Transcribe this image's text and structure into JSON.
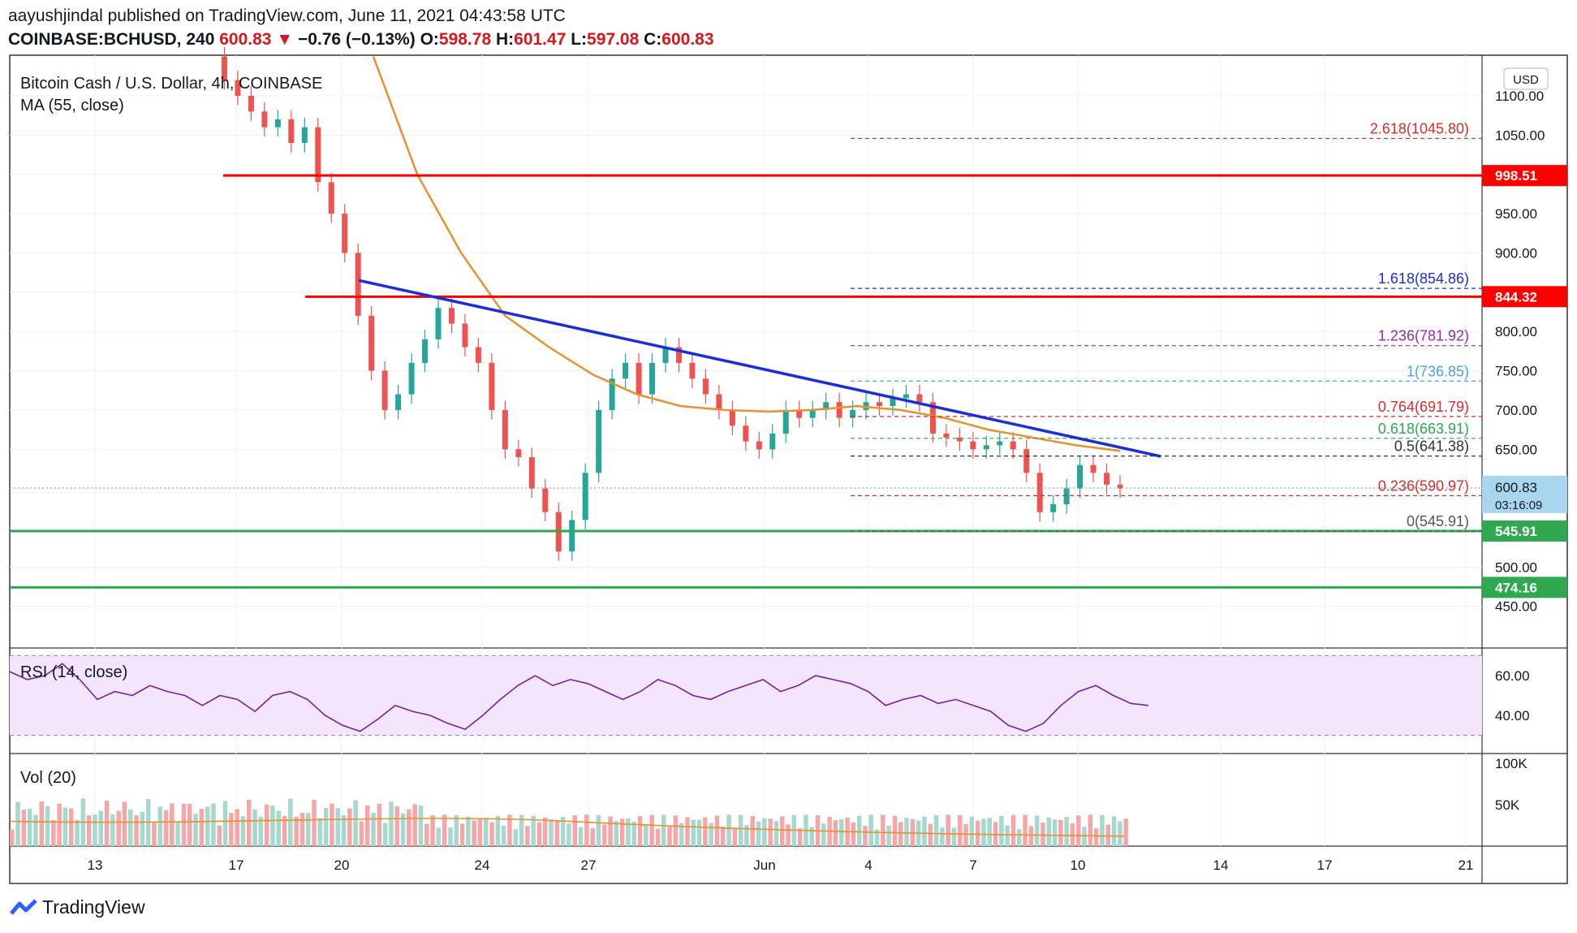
{
  "header": {
    "publisher_line": "aayushjindal published on TradingView.com, June 11, 2021 04:43:58 UTC",
    "symbol": "COINBASE:BCHUSD, 240",
    "last": "600.83",
    "change": "−0.76 (−0.13%)",
    "open_label": "O:",
    "open": "598.78",
    "high_label": "H:",
    "high": "601.47",
    "low_label": "L:",
    "low": "597.08",
    "close_label": "C:",
    "close": "600.83"
  },
  "legend": {
    "pair": "Bitcoin Cash / U.S. Dollar, 4h, COINBASE",
    "ma": "MA (55, close)",
    "rsi": "RSI (14, close)",
    "vol": "Vol (20)"
  },
  "currency_button": "USD",
  "brand": "TradingView",
  "colors": {
    "up": "#26a69a",
    "down": "#ef5350",
    "ma": "#e8912d",
    "trend": "#1a2fd8",
    "resistance": "#ff0000",
    "support": "#2fa84f",
    "rsi_line": "#7b1fa2",
    "rsi_band": "#f3e5fc"
  },
  "chart_data": [
    {
      "type": "candlestick",
      "title": "Bitcoin Cash / U.S. Dollar, 4h, COINBASE",
      "x_ticks": [
        "13",
        "17",
        "20",
        "24",
        "27",
        "Jun",
        "4",
        "7",
        "10",
        "14",
        "17",
        "21"
      ],
      "y_ticks": [
        "1100.00",
        "1050.00",
        "950.00",
        "900.00",
        "800.00",
        "750.00",
        "700.00",
        "650.00",
        "500.00",
        "450.00"
      ],
      "ylim": [
        400,
        1150
      ],
      "approx_close_path": [
        1150,
        1120,
        1100,
        1080,
        1060,
        1070,
        1040,
        1060,
        990,
        950,
        900,
        820,
        750,
        700,
        720,
        760,
        790,
        830,
        810,
        780,
        760,
        700,
        650,
        640,
        600,
        570,
        520,
        560,
        620,
        700,
        740,
        760,
        720,
        760,
        780,
        760,
        740,
        720,
        700,
        680,
        660,
        650,
        670,
        700,
        690,
        700,
        710,
        690,
        700,
        710,
        705,
        715,
        720,
        710,
        670,
        665,
        660,
        650,
        655,
        660,
        650,
        620,
        570,
        580,
        600,
        630,
        620,
        605,
        600
      ],
      "moving_average": {
        "name": "MA (55, close)",
        "approx_values": [
          1150,
          1000,
          900,
          820,
          780,
          745,
          720,
          705,
          700,
          698,
          700,
          705,
          700,
          690,
          675,
          665,
          655,
          648
        ]
      },
      "horizontal_levels": [
        {
          "value": 998.51,
          "label": "998.51",
          "kind": "resistance"
        },
        {
          "value": 844.32,
          "label": "844.32",
          "kind": "resistance"
        },
        {
          "value": 545.91,
          "label": "545.91",
          "kind": "support"
        },
        {
          "value": 474.16,
          "label": "474.16",
          "kind": "support"
        }
      ],
      "fib_levels": [
        {
          "label": "2.618(1045.80)",
          "value": 1045.8,
          "color": "#d32f2f"
        },
        {
          "label": "1.618(854.86)",
          "value": 854.86,
          "color": "#1a2fd8"
        },
        {
          "label": "1.236(781.92)",
          "value": 781.92,
          "color": "#9c27b0"
        },
        {
          "label": "1(736.85)",
          "value": 736.85,
          "color": "#4aa3df"
        },
        {
          "label": "0.764(691.79)",
          "value": 691.79,
          "color": "#d32f2f"
        },
        {
          "label": "0.618(663.91)",
          "value": 663.91,
          "color": "#2fa84f"
        },
        {
          "label": "0.5(641.38)",
          "value": 641.38,
          "color": "#333333"
        },
        {
          "label": "0.236(590.97)",
          "value": 590.97,
          "color": "#d32f2f"
        },
        {
          "label": "0(545.91)",
          "value": 545.91,
          "color": "#555555"
        }
      ],
      "trend_line": {
        "from": [
          20.6,
          865
        ],
        "to": [
          12.05,
          641
        ]
      },
      "last_price": {
        "label": "600.83",
        "countdown": "03:16:09",
        "value": 600.83
      }
    },
    {
      "type": "line",
      "title": "RSI (14, close)",
      "y_ticks": [
        "60.00",
        "40.00"
      ],
      "ylim": [
        25,
        70
      ],
      "band": [
        30,
        70
      ],
      "approx_values": [
        62,
        58,
        60,
        66,
        58,
        48,
        52,
        50,
        55,
        52,
        50,
        45,
        50,
        48,
        42,
        50,
        52,
        48,
        40,
        35,
        32,
        38,
        45,
        42,
        40,
        36,
        33,
        40,
        48,
        55,
        60,
        55,
        58,
        56,
        52,
        48,
        52,
        58,
        55,
        50,
        48,
        52,
        55,
        58,
        52,
        55,
        60,
        58,
        56,
        52,
        45,
        48,
        50,
        46,
        48,
        45,
        42,
        35,
        32,
        36,
        45,
        52,
        55,
        50,
        46,
        45
      ]
    },
    {
      "type": "bar",
      "title": "Vol (20)",
      "y_ticks": [
        "100K",
        "50K"
      ],
      "ylim": [
        0,
        110000
      ]
    }
  ]
}
